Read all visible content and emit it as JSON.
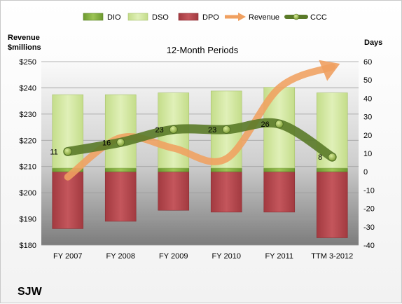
{
  "chart_data": {
    "type": "bar",
    "title": "12-Month Periods",
    "company": "SJW",
    "left_axis_label": [
      "Revenue",
      "$millions"
    ],
    "right_axis_label": "Days",
    "left_ticks": [
      "$180",
      "$190",
      "$200",
      "$210",
      "$220",
      "$230",
      "$240",
      "$250"
    ],
    "left_range": [
      180,
      250
    ],
    "right_ticks": [
      "-40",
      "-30",
      "-20",
      "-10",
      "0",
      "10",
      "20",
      "30",
      "40",
      "50",
      "60"
    ],
    "right_range": [
      -40,
      60
    ],
    "categories": [
      "FY 2007",
      "FY 2008",
      "FY 2009",
      "FY 2010",
      "FY 2011",
      "TTM 3-2012"
    ],
    "legend": [
      "DIO",
      "DSO",
      "DPO",
      "Revenue",
      "CCC"
    ],
    "series": [
      {
        "name": "DIO",
        "axis": "right",
        "values": [
          2,
          2,
          2,
          2,
          2,
          2
        ],
        "color": "#7aa43a"
      },
      {
        "name": "DSO",
        "axis": "right",
        "values": [
          40,
          40,
          41,
          42,
          44,
          41
        ],
        "color": "#d2e8a0"
      },
      {
        "name": "DPO",
        "axis": "right",
        "values": [
          -31,
          -27,
          -21,
          -22,
          -22,
          -36
        ],
        "color": "#b0444a"
      },
      {
        "name": "Revenue",
        "axis": "left",
        "values": [
          206,
          221,
          217,
          213,
          240,
          248
        ],
        "color": "#f0a060"
      },
      {
        "name": "CCC",
        "axis": "right",
        "values": [
          11,
          16,
          23,
          23,
          26,
          8
        ],
        "color": "#5a7a28"
      }
    ],
    "ccc_labels": [
      "11",
      "16",
      "23",
      "23",
      "26",
      "8"
    ]
  }
}
